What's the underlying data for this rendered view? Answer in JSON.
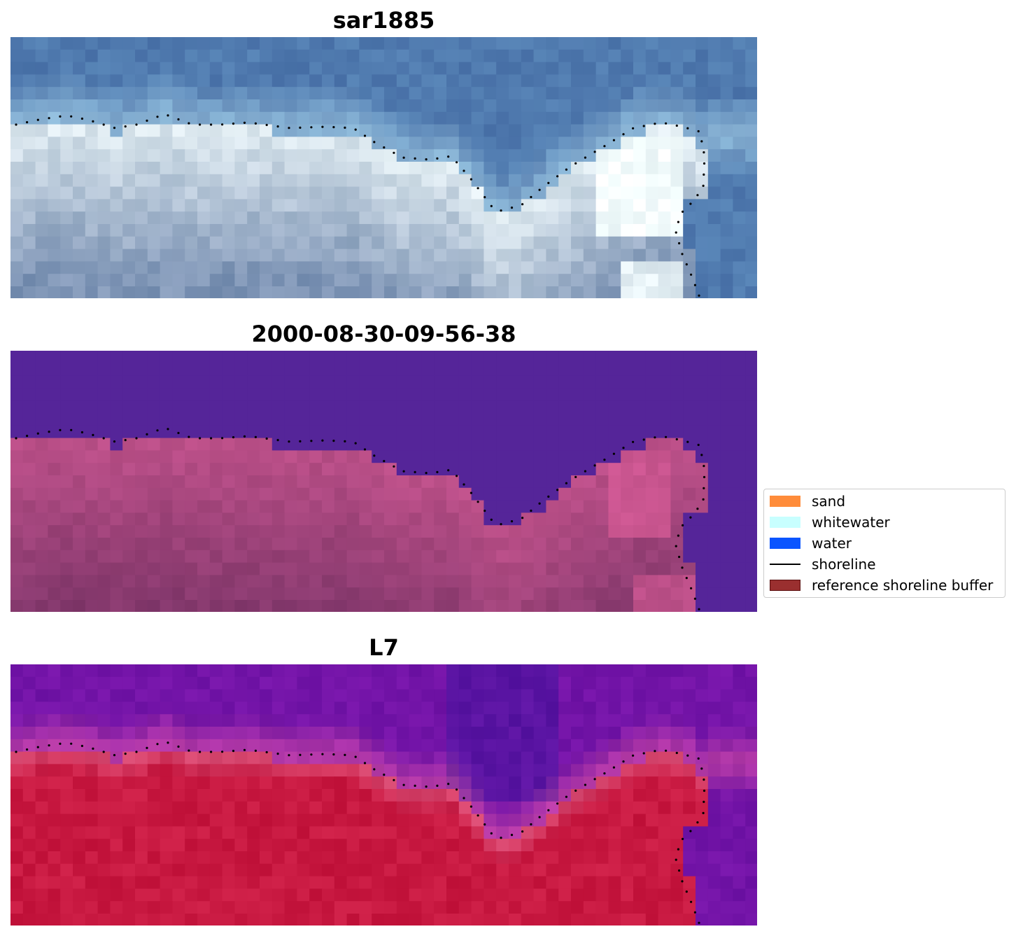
{
  "panels": [
    {
      "title": "sar1885",
      "style": "rgb"
    },
    {
      "title": "2000-08-30-09-56-38",
      "style": "classified"
    },
    {
      "title": "L7",
      "style": "index"
    }
  ],
  "legend": {
    "items": [
      {
        "label": "sand",
        "color": "#ff8c3a",
        "kind": "patch"
      },
      {
        "label": "whitewater",
        "color": "#c8ffff",
        "kind": "patch"
      },
      {
        "label": "water",
        "color": "#0a55ff",
        "kind": "patch"
      },
      {
        "label": "shoreline",
        "color": "#000000",
        "kind": "line"
      },
      {
        "label": "reference shoreline buffer",
        "color": "#9a2f2f",
        "kind": "patch"
      }
    ]
  },
  "colors": {
    "water_classified": "#552599",
    "land_classified": "#8a4478",
    "shoreline_points": "#000000"
  }
}
